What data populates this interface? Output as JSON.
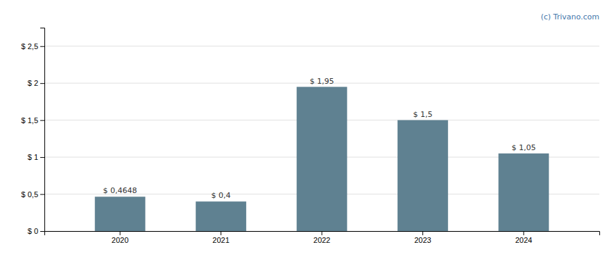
{
  "chart_data": {
    "type": "bar",
    "categories": [
      "2020",
      "2021",
      "2022",
      "2023",
      "2024"
    ],
    "values": [
      0.4648,
      0.4,
      1.95,
      1.5,
      1.05
    ],
    "value_labels": [
      "$ 0,4648",
      "$ 0,4",
      "$ 1,95",
      "$ 1,5",
      "$ 1,05"
    ],
    "data_labels": true,
    "color": "#5f8191",
    "ylim": [
      0,
      2.75
    ],
    "yticks": [
      {
        "value": 0,
        "label": "$ 0"
      },
      {
        "value": 0.5,
        "label": "$ 0,5"
      },
      {
        "value": 1.0,
        "label": "$ 1"
      },
      {
        "value": 1.5,
        "label": "$ 1,5"
      },
      {
        "value": 2.0,
        "label": "$ 2"
      },
      {
        "value": 2.5,
        "label": "$ 2,5"
      }
    ],
    "grid": true,
    "annotations": [
      {
        "text": "(c) Trivano.com",
        "color": "#4477aa"
      }
    ]
  }
}
